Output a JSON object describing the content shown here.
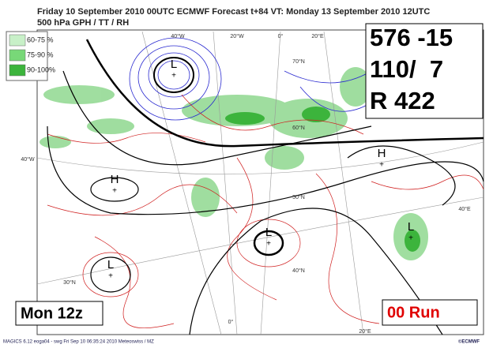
{
  "header": {
    "title": "Friday 10 September 2010 00UTC ECMWF  Forecast t+84 VT: Monday 13 September 2010 12UTC",
    "subtitle": "500 hPa GPH / TT / RH"
  },
  "legend": [
    "60-75 %",
    "75-90 %",
    "90-100%"
  ],
  "info_box": [
    "576 -15",
    "110/  7",
    "R 422"
  ],
  "day_label": "Mon 12z",
  "run_label": "00 Run",
  "footer": {
    "credit": "MAGICS 6.12 eoga04 - swg Fri Sep 10 06:35:24 2010 Meteoswiss / MZ",
    "logo": "©ECMWF"
  },
  "grid_labels": [
    "40°W",
    "20°W",
    "0°",
    "20°E",
    "70°N",
    "60°N",
    "50°N",
    "40°N",
    "30°N",
    "40°W",
    "40°E",
    "0°",
    "20°E"
  ],
  "centers": [
    "L",
    "L",
    "L",
    "L",
    "H",
    "H"
  ]
}
